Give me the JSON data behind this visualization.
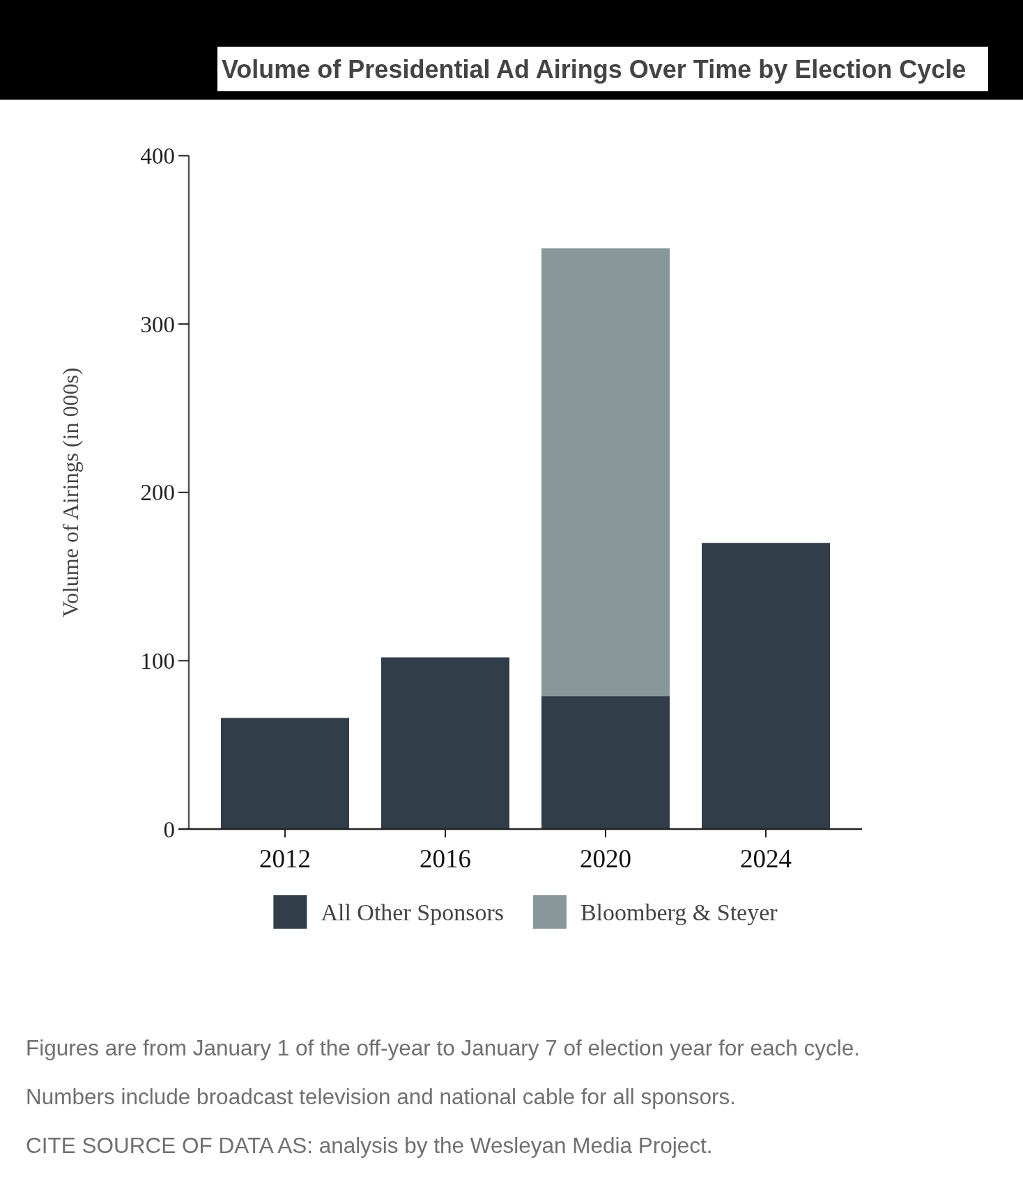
{
  "chart_data": {
    "type": "bar",
    "title": "Volume of Presidential Ad Airings Over Time by Election Cycle",
    "ylabel": "Volume of Airings (in 000s)",
    "categories": [
      "2012",
      "2016",
      "2020",
      "2024"
    ],
    "series": [
      {
        "name": "All Other Sponsors",
        "color": "#323d4a",
        "values": [
          66,
          102,
          79,
          170
        ]
      },
      {
        "name": "Bloomberg & Steyer",
        "color": "#87979a",
        "values": [
          null,
          null,
          266,
          null
        ]
      }
    ],
    "stacked": true,
    "ylim": [
      0,
      400
    ],
    "yticks": [
      0,
      100,
      200,
      300,
      400
    ],
    "legend": "bottom",
    "annotations": [
      "Figures are from January 1 of the off-year to January 7 of election year for each cycle.",
      "Numbers include broadcast television and national cable for all sponsors.",
      "CITE SOURCE OF DATA AS: analysis by the Wesleyan Media Project."
    ]
  }
}
